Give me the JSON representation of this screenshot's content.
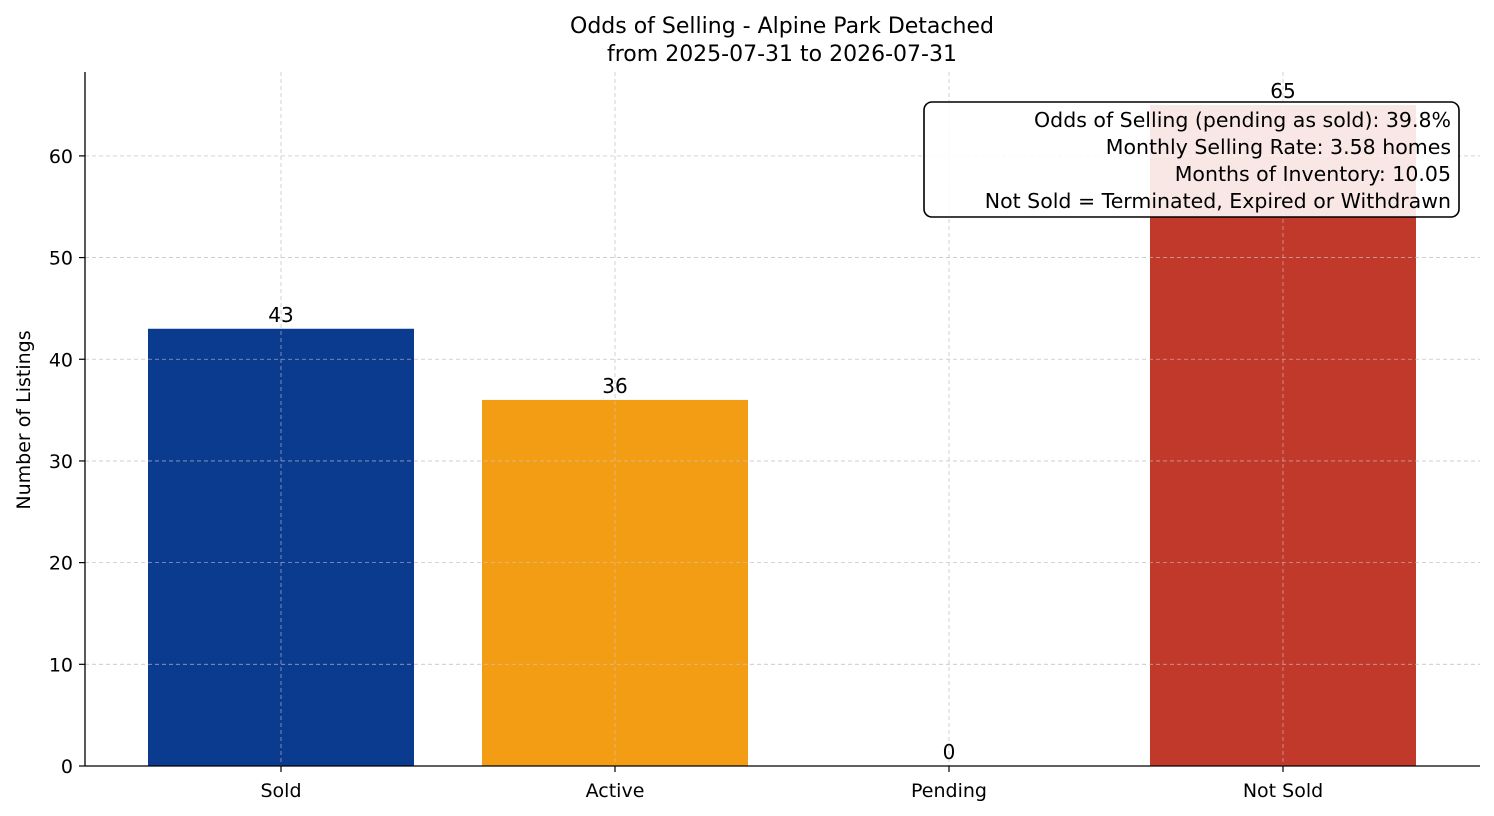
{
  "chart_data": {
    "type": "bar",
    "title": "Odds of Selling - Alpine Park Detached",
    "subtitle": "from 2025-07-31 to 2026-07-31",
    "xlabel": "",
    "ylabel": "Number of Listings",
    "categories": [
      "Sold",
      "Active",
      "Pending",
      "Not Sold"
    ],
    "values": [
      43,
      36,
      0,
      65
    ],
    "colors": [
      "#0b3b8f",
      "#f29d14",
      "#2e8b57",
      "#c0392b"
    ],
    "ylim": [
      0,
      68.25
    ],
    "yticks": [
      0,
      10,
      20,
      30,
      40,
      50,
      60
    ],
    "grid": true,
    "annotation": {
      "placement": "top-right",
      "lines": [
        "Odds of Selling (pending as sold): 39.8%",
        "Monthly Selling Rate: 3.58 homes",
        "Months of Inventory: 10.05",
        "Not Sold = Terminated, Expired or Withdrawn"
      ]
    }
  }
}
